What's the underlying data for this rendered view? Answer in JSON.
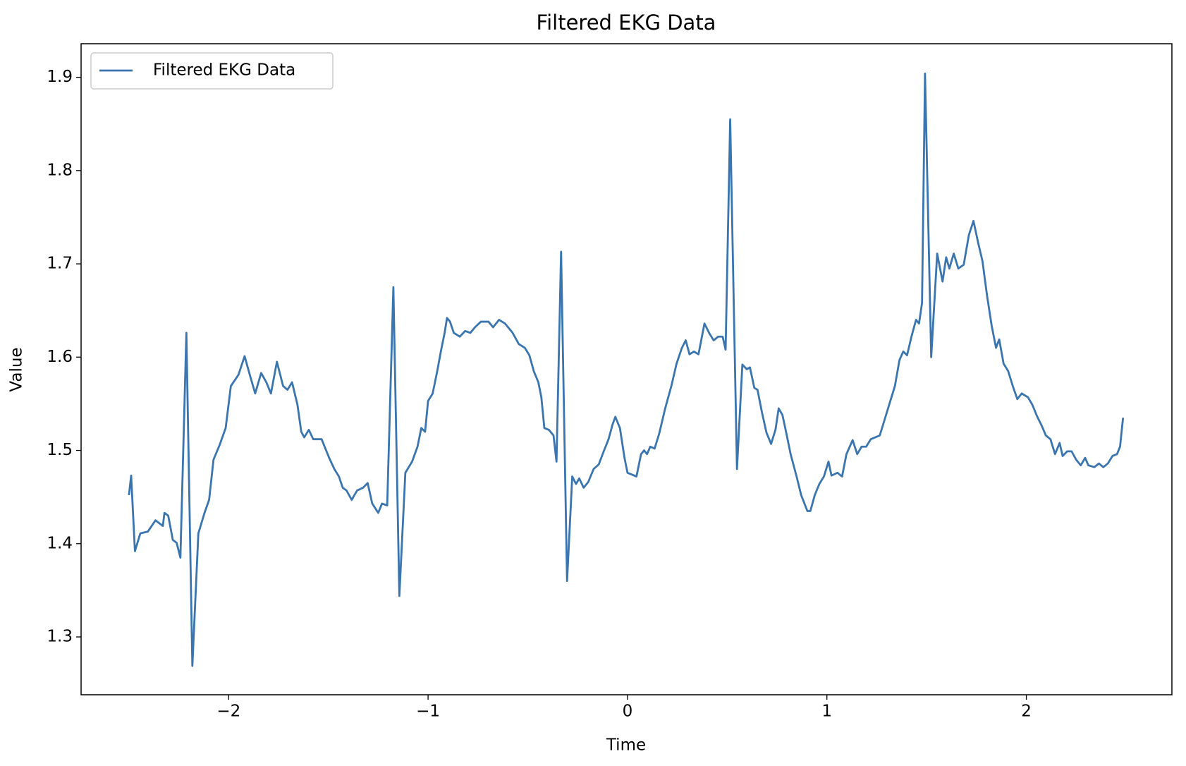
{
  "chart_data": {
    "type": "line",
    "title": "Filtered EKG Data",
    "x_label": "Time",
    "y_label": "Value",
    "legend": "upper left",
    "grid": false,
    "xlim": [
      -2.74,
      2.73
    ],
    "ylim": [
      1.238,
      1.936
    ],
    "xticks": [
      {
        "value": -2,
        "label": "−2"
      },
      {
        "value": -1,
        "label": "−1"
      },
      0,
      1,
      2
    ],
    "yticks": [
      1.3,
      1.4,
      1.5,
      1.6,
      1.7,
      1.8,
      1.9
    ],
    "x": [
      -2.5,
      -2.489,
      -2.47,
      -2.443,
      -2.405,
      -2.367,
      -2.33,
      -2.322,
      -2.303,
      -2.28,
      -2.261,
      -2.242,
      -2.212,
      -2.182,
      -2.152,
      -2.121,
      -2.098,
      -2.076,
      -2.045,
      -2.015,
      -1.989,
      -1.951,
      -1.92,
      -1.894,
      -1.867,
      -1.837,
      -1.811,
      -1.788,
      -1.758,
      -1.727,
      -1.705,
      -1.682,
      -1.655,
      -1.636,
      -1.621,
      -1.598,
      -1.576,
      -1.534,
      -1.496,
      -1.47,
      -1.447,
      -1.428,
      -1.409,
      -1.383,
      -1.356,
      -1.326,
      -1.303,
      -1.28,
      -1.25,
      -1.231,
      -1.205,
      -1.174,
      -1.144,
      -1.114,
      -1.08,
      -1.053,
      -1.034,
      -1.015,
      -1.0,
      -0.977,
      -0.955,
      -0.936,
      -0.917,
      -0.905,
      -0.89,
      -0.871,
      -0.841,
      -0.814,
      -0.788,
      -0.765,
      -0.735,
      -0.697,
      -0.674,
      -0.644,
      -0.614,
      -0.576,
      -0.545,
      -0.515,
      -0.492,
      -0.47,
      -0.447,
      -0.432,
      -0.417,
      -0.394,
      -0.371,
      -0.356,
      -0.333,
      -0.303,
      -0.277,
      -0.258,
      -0.242,
      -0.22,
      -0.197,
      -0.17,
      -0.144,
      -0.121,
      -0.095,
      -0.076,
      -0.061,
      -0.038,
      -0.015,
      0.0,
      0.023,
      0.045,
      0.068,
      0.083,
      0.098,
      0.114,
      0.136,
      0.159,
      0.189,
      0.22,
      0.246,
      0.273,
      0.292,
      0.311,
      0.333,
      0.356,
      0.386,
      0.409,
      0.432,
      0.455,
      0.477,
      0.492,
      0.515,
      0.549,
      0.576,
      0.598,
      0.614,
      0.636,
      0.652,
      0.674,
      0.697,
      0.72,
      0.742,
      0.758,
      0.777,
      0.795,
      0.818,
      0.848,
      0.871,
      0.902,
      0.917,
      0.939,
      0.962,
      0.985,
      1.008,
      1.023,
      1.053,
      1.076,
      1.098,
      1.129,
      1.152,
      1.174,
      1.197,
      1.22,
      1.242,
      1.265,
      1.288,
      1.318,
      1.341,
      1.364,
      1.383,
      1.402,
      1.424,
      1.447,
      1.462,
      1.477,
      1.492,
      1.523,
      1.553,
      1.58,
      1.598,
      1.614,
      1.636,
      1.659,
      1.686,
      1.712,
      1.735,
      1.758,
      1.78,
      1.803,
      1.826,
      1.848,
      1.864,
      1.886,
      1.909,
      1.932,
      1.955,
      1.977,
      2.008,
      2.03,
      2.053,
      2.076,
      2.098,
      2.121,
      2.144,
      2.167,
      2.182,
      2.205,
      2.227,
      2.25,
      2.273,
      2.295,
      2.311,
      2.341,
      2.364,
      2.386,
      2.409,
      2.432,
      2.455,
      2.47,
      2.485
    ],
    "series": [
      {
        "name": "Filtered EKG Data",
        "color": "#3a75b0",
        "values": [
          1.452,
          1.473,
          1.392,
          1.411,
          1.413,
          1.425,
          1.419,
          1.433,
          1.43,
          1.404,
          1.401,
          1.385,
          1.626,
          1.269,
          1.411,
          1.433,
          1.447,
          1.49,
          1.506,
          1.524,
          1.569,
          1.581,
          1.601,
          1.581,
          1.561,
          1.583,
          1.573,
          1.561,
          1.595,
          1.569,
          1.565,
          1.573,
          1.549,
          1.52,
          1.514,
          1.522,
          1.512,
          1.512,
          1.492,
          1.48,
          1.472,
          1.46,
          1.457,
          1.447,
          1.457,
          1.46,
          1.465,
          1.443,
          1.433,
          1.443,
          1.441,
          1.675,
          1.344,
          1.476,
          1.488,
          1.504,
          1.524,
          1.52,
          1.553,
          1.561,
          1.584,
          1.606,
          1.626,
          1.642,
          1.638,
          1.626,
          1.622,
          1.628,
          1.626,
          1.632,
          1.638,
          1.638,
          1.632,
          1.64,
          1.636,
          1.626,
          1.614,
          1.61,
          1.602,
          1.585,
          1.573,
          1.557,
          1.524,
          1.522,
          1.516,
          1.488,
          1.713,
          1.36,
          1.472,
          1.464,
          1.47,
          1.46,
          1.466,
          1.48,
          1.485,
          1.498,
          1.512,
          1.527,
          1.536,
          1.524,
          1.492,
          1.476,
          1.474,
          1.472,
          1.496,
          1.5,
          1.496,
          1.504,
          1.502,
          1.518,
          1.545,
          1.569,
          1.593,
          1.61,
          1.618,
          1.603,
          1.606,
          1.603,
          1.636,
          1.626,
          1.618,
          1.622,
          1.622,
          1.608,
          1.855,
          1.48,
          1.592,
          1.587,
          1.589,
          1.567,
          1.565,
          1.541,
          1.519,
          1.507,
          1.522,
          1.545,
          1.538,
          1.52,
          1.496,
          1.472,
          1.452,
          1.435,
          1.435,
          1.452,
          1.464,
          1.472,
          1.488,
          1.473,
          1.476,
          1.472,
          1.496,
          1.511,
          1.496,
          1.504,
          1.504,
          1.512,
          1.514,
          1.516,
          1.532,
          1.553,
          1.569,
          1.597,
          1.606,
          1.602,
          1.622,
          1.64,
          1.636,
          1.658,
          1.904,
          1.6,
          1.711,
          1.681,
          1.707,
          1.695,
          1.711,
          1.695,
          1.699,
          1.731,
          1.746,
          1.723,
          1.703,
          1.666,
          1.634,
          1.61,
          1.619,
          1.593,
          1.585,
          1.569,
          1.555,
          1.561,
          1.557,
          1.549,
          1.537,
          1.527,
          1.516,
          1.512,
          1.496,
          1.508,
          1.494,
          1.499,
          1.499,
          1.49,
          1.484,
          1.492,
          1.484,
          1.482,
          1.486,
          1.482,
          1.486,
          1.494,
          1.496,
          1.504,
          1.535
        ]
      }
    ]
  }
}
